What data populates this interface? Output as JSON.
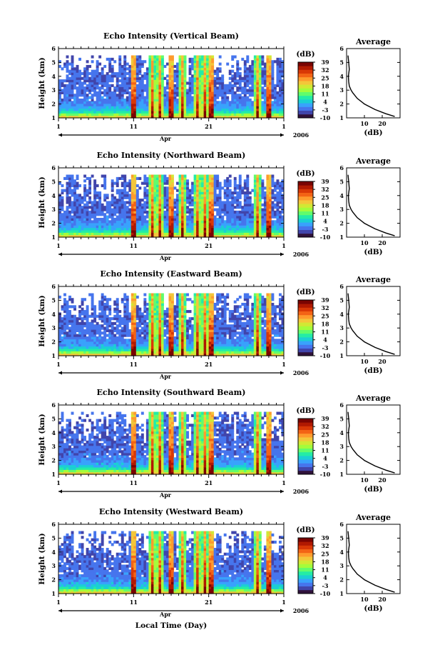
{
  "xlabel": "Local Time (Day)",
  "colorbar": {
    "unit": "(dB)",
    "ticks": [
      39,
      32,
      25,
      18,
      11,
      4,
      -3,
      -10
    ],
    "range": [
      -10,
      39
    ],
    "colormap": [
      "#30123b",
      "#4145ab",
      "#4675ed",
      "#39a2fc",
      "#1bcfd4",
      "#24eca6",
      "#61fc6c",
      "#a4fc3b",
      "#d1e834",
      "#f3c63a",
      "#fe9b2d",
      "#f36315",
      "#d93806",
      "#b11901",
      "#7a0402"
    ]
  },
  "panels": [
    {
      "title": "Echo Intensity (Vertical Beam)",
      "avg_xticks": [
        "10",
        "20"
      ]
    },
    {
      "title": "Echo Intensity (Northward Beam)",
      "avg_xticks": [
        "10",
        "20"
      ]
    },
    {
      "title": "Echo Intensity (Eastward Beam)",
      "avg_xticks": [
        "10",
        "20"
      ]
    },
    {
      "title": "Echo Intensity (Southward Beam)",
      "avg_xticks": [
        "10",
        "20"
      ]
    },
    {
      "title": "Echo Intensity (Westward Beam)",
      "avg_xticks": [
        "10",
        "20"
      ]
    }
  ],
  "chart_data": {
    "type": "heatmap",
    "ylabel": "Height (km)",
    "yticks": [
      "1",
      "2",
      "3",
      "4",
      "5",
      "6"
    ],
    "ylim": [
      1,
      6
    ],
    "xlim": [
      1,
      31
    ],
    "xticks": [
      "1",
      "11",
      "21",
      "1"
    ],
    "month": "Apr",
    "year": "2006",
    "average": {
      "title": "Average",
      "xlabel": "(dB)",
      "xlim": [
        0,
        30
      ],
      "height_km": [
        1.1,
        1.3,
        1.6,
        2.0,
        2.4,
        2.8,
        3.0,
        3.3,
        3.6,
        4.0,
        4.5,
        5.0,
        5.5
      ],
      "intensity_db": [
        27,
        22,
        16,
        10,
        6,
        3.5,
        2.5,
        1.5,
        1.2,
        1.0,
        1.5,
        1.2,
        0.8
      ]
    },
    "rain_days": [
      11,
      13.5,
      14.5,
      16,
      17.5,
      19.5,
      20.5,
      21.3,
      27.5,
      29
    ]
  }
}
